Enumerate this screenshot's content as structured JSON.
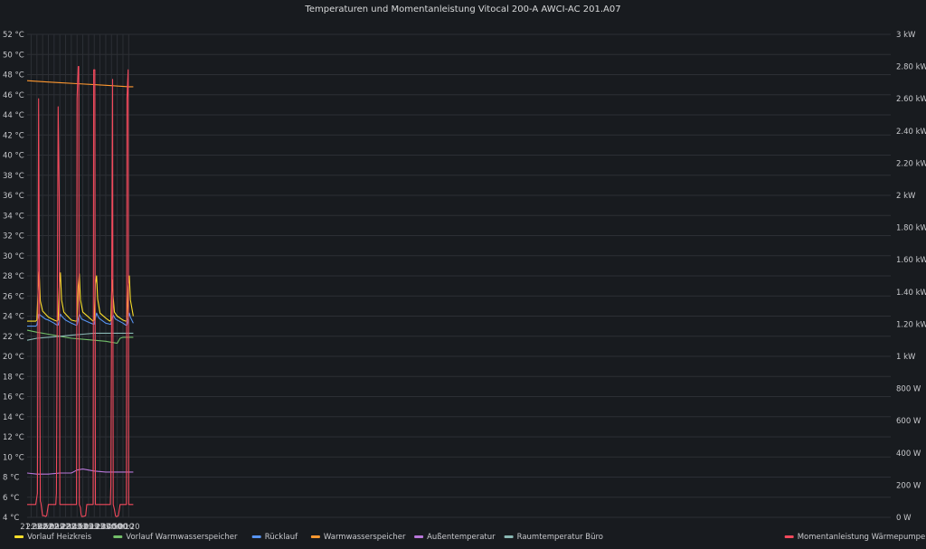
{
  "chart_data": {
    "type": "line",
    "title": "Temperaturen und Momentanleistung Vitocal 200-A AWCI-AC 201.A07",
    "x_range": [
      "21:23",
      "22:28 +1"
    ],
    "x_ticks": [
      "21:30",
      "21:40",
      "21:50",
      "22:00",
      "22:10",
      "22:20",
      "22:30",
      "22:40",
      "22:50",
      "23:00",
      "23:10",
      "23:20",
      "23:30",
      "23:40",
      "23:50",
      "00:00",
      "00:10",
      "00:20"
    ],
    "y_left": {
      "min": 4,
      "max": 52,
      "step": 2,
      "unit": "°C",
      "tick_labels": [
        "4 °C",
        "6 °C",
        "8 °C",
        "10 °C",
        "12 °C",
        "14 °C",
        "16 °C",
        "18 °C",
        "20 °C",
        "22 °C",
        "24 °C",
        "26 °C",
        "28 °C",
        "30 °C",
        "32 °C",
        "34 °C",
        "36 °C",
        "38 °C",
        "40 °C",
        "42 °C",
        "44 °C",
        "46 °C",
        "48 °C",
        "50 °C",
        "52 °C"
      ]
    },
    "y_right": {
      "min": 0,
      "max": 3000,
      "step": 200,
      "unit": "W",
      "tick_labels": [
        "0 W",
        "200 W",
        "400 W",
        "600 W",
        "800 W",
        "1 kW",
        "1.20 kW",
        "1.40 kW",
        "1.60 kW",
        "1.80 kW",
        "2 kW",
        "2.20 kW",
        "2.40 kW",
        "2.60 kW",
        "2.80 kW",
        "3 kW"
      ]
    },
    "grid": true,
    "legend_position": "bottom",
    "series": [
      {
        "name": "Vorlauf Heizkreis",
        "color": "#fade2a",
        "axis": "left",
        "x": [
          "21:23",
          "21:38",
          "21:40",
          "21:42",
          "21:44",
          "21:46",
          "21:50",
          "21:55",
          "22:00",
          "22:10",
          "22:15",
          "22:17",
          "22:19",
          "22:21",
          "22:23",
          "22:27",
          "22:35",
          "22:40",
          "22:48",
          "22:50",
          "22:52",
          "22:54",
          "22:56",
          "23:00",
          "23:10",
          "23:18",
          "23:20",
          "23:22",
          "23:24",
          "23:26",
          "23:30",
          "23:40",
          "23:47",
          "23:49",
          "23:51",
          "23:53",
          "23:55",
          "00:00",
          "00:10",
          "00:15",
          "00:17",
          "00:19",
          "00:21",
          "00:23",
          "00:28"
        ],
        "y": [
          23.5,
          23.5,
          23.6,
          26.5,
          28.4,
          25.5,
          24.5,
          24.2,
          23.9,
          23.6,
          23.5,
          23.6,
          26.8,
          28.3,
          25.6,
          24.4,
          23.9,
          23.6,
          23.5,
          23.6,
          27.0,
          28.2,
          25.6,
          24.4,
          23.9,
          23.5,
          23.6,
          27.2,
          28.0,
          25.7,
          24.3,
          23.8,
          23.5,
          23.6,
          27.6,
          25.8,
          24.4,
          24.0,
          23.6,
          23.5,
          23.6,
          26.9,
          28.0,
          25.6,
          24.0
        ]
      },
      {
        "name": "Vorlauf Warmwasserspeicher",
        "color": "#73bf69",
        "axis": "left",
        "x": [
          "21:23",
          "21:40",
          "22:00",
          "22:20",
          "22:40",
          "23:00",
          "23:20",
          "23:40",
          "23:50",
          "00:00",
          "00:05",
          "00:10",
          "00:28"
        ],
        "y": [
          22.6,
          22.4,
          22.2,
          22.0,
          21.8,
          21.7,
          21.6,
          21.5,
          21.4,
          21.3,
          21.8,
          21.9,
          21.9
        ]
      },
      {
        "name": "Rücklauf",
        "color": "#5794f2",
        "axis": "left",
        "x": [
          "21:23",
          "21:38",
          "21:40",
          "21:42",
          "21:44",
          "21:48",
          "21:55",
          "22:00",
          "22:10",
          "22:15",
          "22:17",
          "22:19",
          "22:21",
          "22:23",
          "22:30",
          "22:40",
          "22:48",
          "22:50",
          "22:52",
          "22:54",
          "22:58",
          "23:10",
          "23:18",
          "23:20",
          "23:22",
          "23:24",
          "23:28",
          "23:40",
          "23:47",
          "23:49",
          "23:51",
          "23:53",
          "23:57",
          "00:10",
          "00:15",
          "00:17",
          "00:19",
          "00:21",
          "00:23",
          "00:28"
        ],
        "y": [
          23.0,
          23.0,
          23.1,
          23.7,
          24.2,
          24.0,
          23.7,
          23.6,
          23.3,
          23.1,
          23.1,
          23.6,
          24.2,
          24.0,
          23.6,
          23.3,
          23.1,
          23.1,
          23.7,
          24.2,
          23.7,
          23.4,
          23.2,
          23.2,
          23.8,
          24.3,
          23.8,
          23.3,
          23.2,
          23.2,
          23.8,
          24.1,
          23.7,
          23.3,
          23.1,
          23.1,
          23.7,
          24.3,
          23.9,
          23.3
        ]
      },
      {
        "name": "Warmwasserspeicher",
        "color": "#ff9830",
        "axis": "left",
        "x": [
          "21:23",
          "21:50",
          "22:20",
          "22:50",
          "23:20",
          "23:50",
          "00:20",
          "00:28"
        ],
        "y": [
          47.4,
          47.3,
          47.2,
          47.1,
          47.0,
          46.9,
          46.8,
          46.8
        ]
      },
      {
        "name": "Außentemperatur",
        "color": "#b877d9",
        "axis": "left",
        "x": [
          "21:23",
          "21:40",
          "22:00",
          "22:20",
          "22:40",
          "22:50",
          "23:00",
          "23:10",
          "23:20",
          "23:40",
          "00:00",
          "00:20",
          "00:28"
        ],
        "y": [
          8.4,
          8.3,
          8.3,
          8.4,
          8.4,
          8.7,
          8.8,
          8.7,
          8.6,
          8.5,
          8.5,
          8.5,
          8.5
        ]
      },
      {
        "name": "Raumtemperatur Büro",
        "color": "#8ab8b4",
        "axis": "left",
        "x": [
          "21:23",
          "21:40",
          "22:00",
          "22:20",
          "22:40",
          "23:00",
          "23:20",
          "23:40",
          "00:00",
          "00:28"
        ],
        "y": [
          21.6,
          21.8,
          21.9,
          22.0,
          22.1,
          22.2,
          22.3,
          22.3,
          22.3,
          22.3
        ]
      },
      {
        "name": "Momentanleistung Wärmepumpe",
        "color": "#f2495c",
        "axis": "right",
        "x": [
          "21:23",
          "21:37",
          "21:38",
          "21:41",
          "21:43",
          "21:44",
          "21:46",
          "21:47",
          "21:50",
          "21:53",
          "21:55",
          "21:57",
          "22:00",
          "22:10",
          "22:13",
          "22:14",
          "22:17",
          "22:19",
          "22:20",
          "22:22",
          "22:30",
          "22:40",
          "22:49",
          "22:50",
          "22:52",
          "22:53",
          "22:54",
          "22:56",
          "22:57",
          "22:58",
          "23:00",
          "23:05",
          "23:07",
          "23:10",
          "23:18",
          "23:19",
          "23:21",
          "23:22",
          "23:26",
          "23:40",
          "23:48",
          "23:49",
          "23:52",
          "23:53",
          "23:55",
          "23:57",
          "23:58",
          "00:00",
          "00:02",
          "00:05",
          "00:08",
          "00:16",
          "00:17",
          "00:19",
          "00:20",
          "00:22",
          "00:28"
        ],
        "y": [
          80,
          80,
          80,
          150,
          2600,
          1800,
          100,
          90,
          10,
          10,
          5,
          10,
          80,
          80,
          80,
          150,
          2550,
          2000,
          80,
          80,
          80,
          80,
          80,
          2600,
          2800,
          2800,
          80,
          60,
          20,
          5,
          5,
          10,
          80,
          80,
          80,
          2780,
          2780,
          80,
          80,
          80,
          80,
          200,
          2720,
          80,
          50,
          10,
          5,
          5,
          10,
          80,
          80,
          80,
          2600,
          2780,
          80,
          80,
          80
        ]
      }
    ]
  }
}
